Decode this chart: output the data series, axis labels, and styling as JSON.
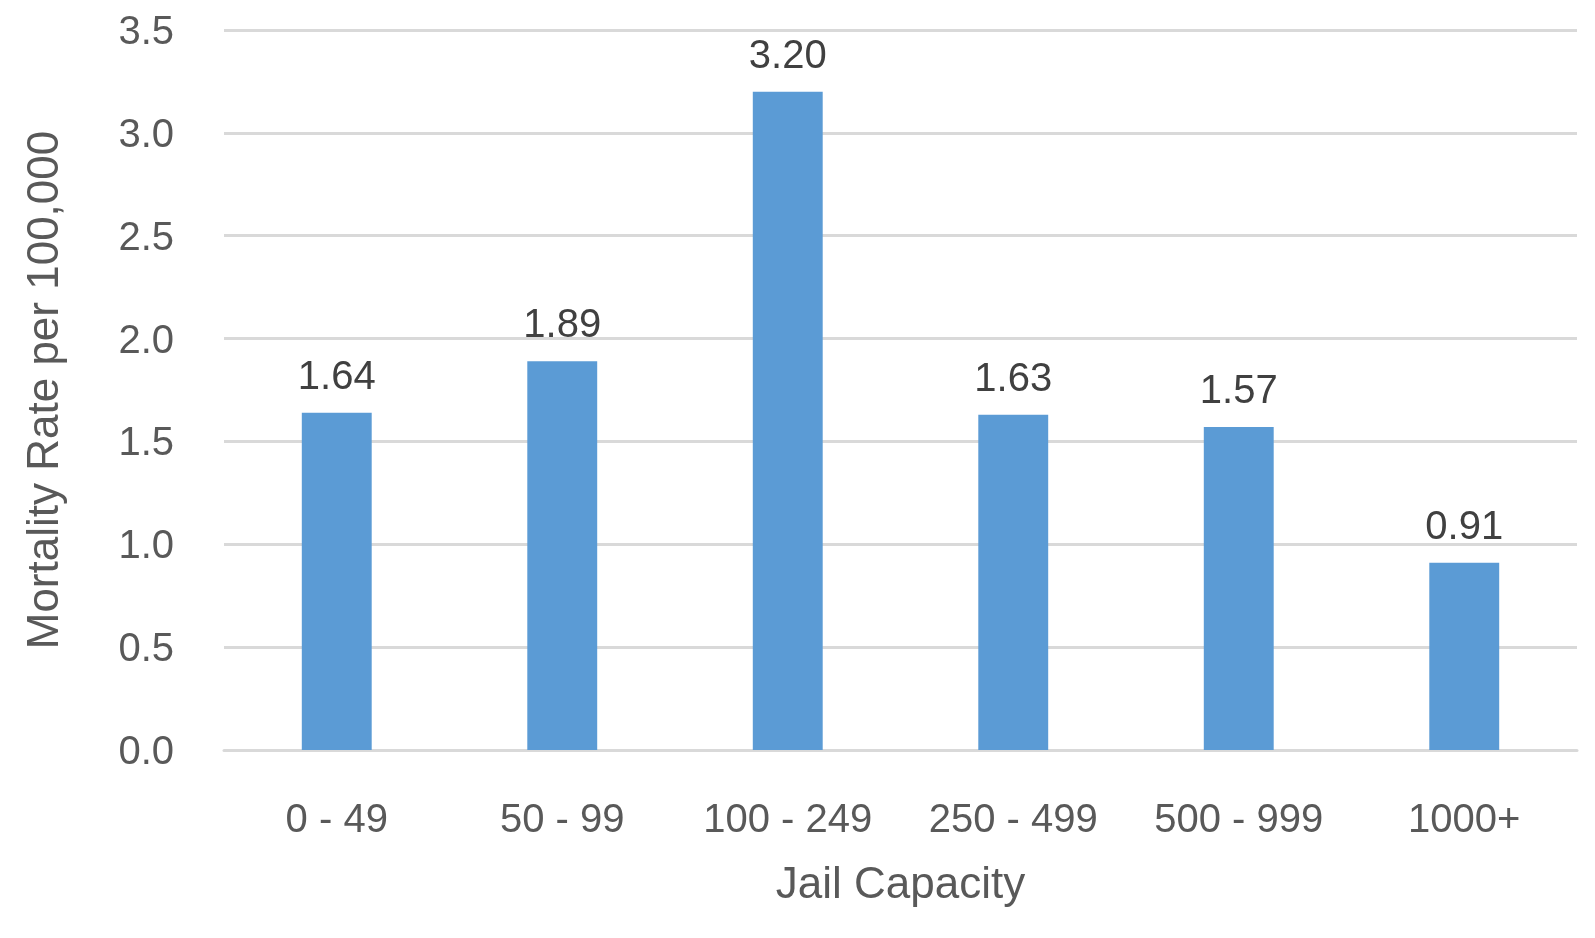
{
  "chart_data": {
    "type": "bar",
    "xlabel": "Jail Capacity",
    "ylabel": "Mortality Rate per 100,000",
    "categories": [
      "0 - 49",
      "50 - 99",
      "100 - 249",
      "250 - 499",
      "500 - 999",
      "1000+"
    ],
    "values": [
      1.64,
      1.89,
      3.2,
      1.63,
      1.57,
      0.91
    ],
    "value_labels": [
      "1.64",
      "1.89",
      "3.20",
      "1.63",
      "1.57",
      "0.91"
    ],
    "color": "#5b9bd5",
    "ylim": [
      0,
      3.5
    ],
    "yticks": [
      {
        "value": 0,
        "label": "0.0"
      },
      {
        "value": 0.5,
        "label": "0.5"
      },
      {
        "value": 1,
        "label": "1.0"
      },
      {
        "value": 1.5,
        "label": "1.5"
      },
      {
        "value": 2,
        "label": "2.0"
      },
      {
        "value": 2.5,
        "label": "2.5"
      },
      {
        "value": 3,
        "label": "3.0"
      },
      {
        "value": 3.5,
        "label": "3.5"
      }
    ],
    "grid": "y"
  }
}
